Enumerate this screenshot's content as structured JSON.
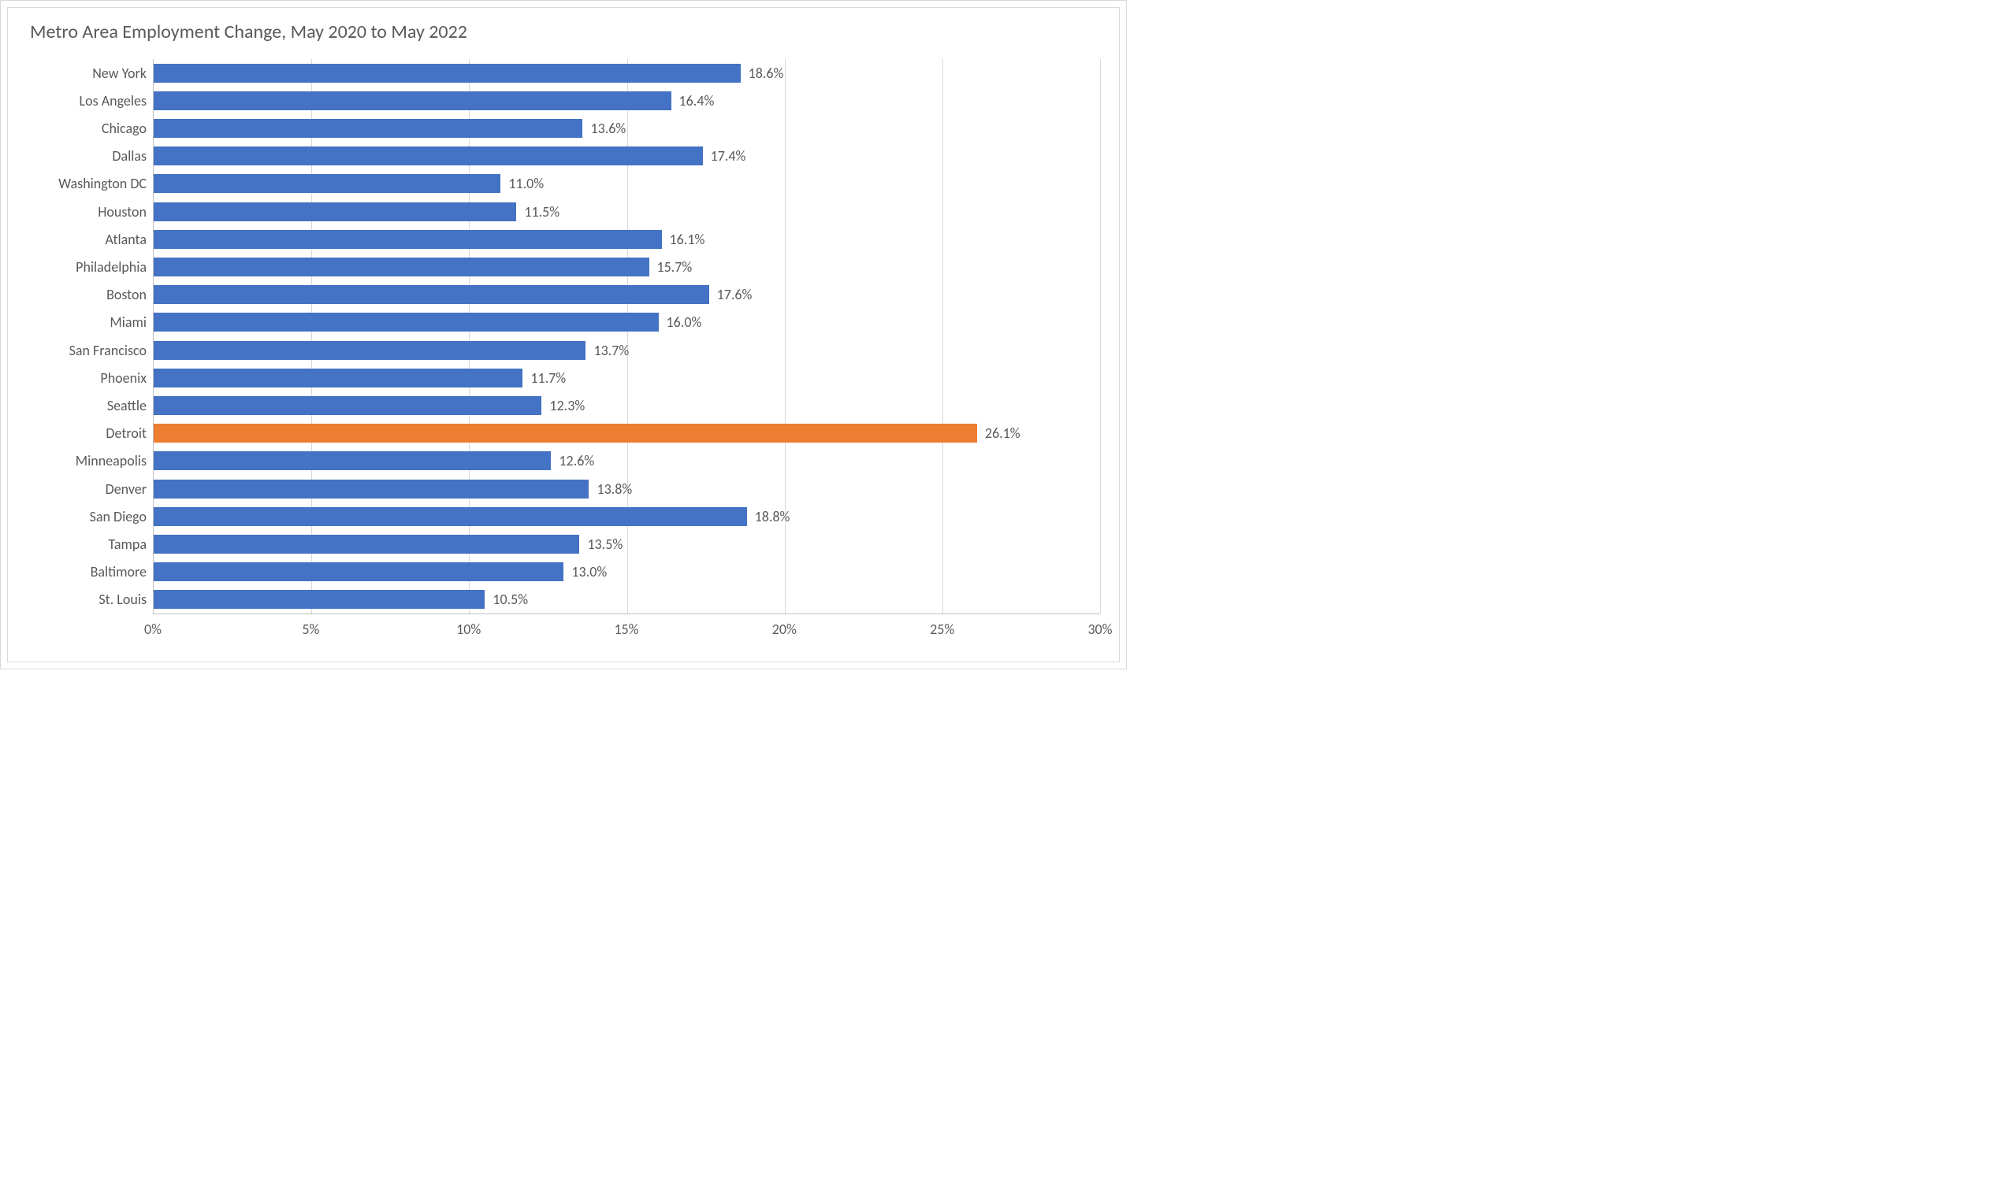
{
  "chart": {
    "type": "horizontal-bar",
    "title": "Metro Area Employment Change, May 2020 to May 2022",
    "title_fontsize": 24,
    "title_color": "#595959",
    "background_color": "#ffffff",
    "border_color": "#d9d9d9",
    "grid_color": "#d9d9d9",
    "axis_line_color": "#bfbfbf",
    "label_color": "#595959",
    "label_fontsize": 18,
    "value_label_fontsize": 18,
    "default_bar_color": "#4472c4",
    "highlight_bar_color": "#ed7d31",
    "bar_height_ratio": 0.68,
    "x_axis": {
      "min": 0,
      "max": 30,
      "tick_step": 5,
      "ticks": [
        0,
        5,
        10,
        15,
        20,
        25,
        30
      ],
      "tick_labels": [
        "0%",
        "5%",
        "10%",
        "15%",
        "20%",
        "25%",
        "30%"
      ]
    },
    "data": [
      {
        "label": "New York",
        "value": 18.6,
        "display": "18.6%",
        "color": "#4472c4"
      },
      {
        "label": "Los Angeles",
        "value": 16.4,
        "display": "16.4%",
        "color": "#4472c4"
      },
      {
        "label": "Chicago",
        "value": 13.6,
        "display": "13.6%",
        "color": "#4472c4"
      },
      {
        "label": "Dallas",
        "value": 17.4,
        "display": "17.4%",
        "color": "#4472c4"
      },
      {
        "label": "Washington DC",
        "value": 11.0,
        "display": "11.0%",
        "color": "#4472c4"
      },
      {
        "label": "Houston",
        "value": 11.5,
        "display": "11.5%",
        "color": "#4472c4"
      },
      {
        "label": "Atlanta",
        "value": 16.1,
        "display": "16.1%",
        "color": "#4472c4"
      },
      {
        "label": "Philadelphia",
        "value": 15.7,
        "display": "15.7%",
        "color": "#4472c4"
      },
      {
        "label": "Boston",
        "value": 17.6,
        "display": "17.6%",
        "color": "#4472c4"
      },
      {
        "label": "Miami",
        "value": 16.0,
        "display": "16.0%",
        "color": "#4472c4"
      },
      {
        "label": "San Francisco",
        "value": 13.7,
        "display": "13.7%",
        "color": "#4472c4"
      },
      {
        "label": "Phoenix",
        "value": 11.7,
        "display": "11.7%",
        "color": "#4472c4"
      },
      {
        "label": "Seattle",
        "value": 12.3,
        "display": "12.3%",
        "color": "#4472c4"
      },
      {
        "label": "Detroit",
        "value": 26.1,
        "display": "26.1%",
        "color": "#ed7d31"
      },
      {
        "label": "Minneapolis",
        "value": 12.6,
        "display": "12.6%",
        "color": "#4472c4"
      },
      {
        "label": "Denver",
        "value": 13.8,
        "display": "13.8%",
        "color": "#4472c4"
      },
      {
        "label": "San Diego",
        "value": 18.8,
        "display": "18.8%",
        "color": "#4472c4"
      },
      {
        "label": "Tampa",
        "value": 13.5,
        "display": "13.5%",
        "color": "#4472c4"
      },
      {
        "label": "Baltimore",
        "value": 13.0,
        "display": "13.0%",
        "color": "#4472c4"
      },
      {
        "label": "St. Louis",
        "value": 10.5,
        "display": "10.5%",
        "color": "#4472c4"
      }
    ]
  }
}
